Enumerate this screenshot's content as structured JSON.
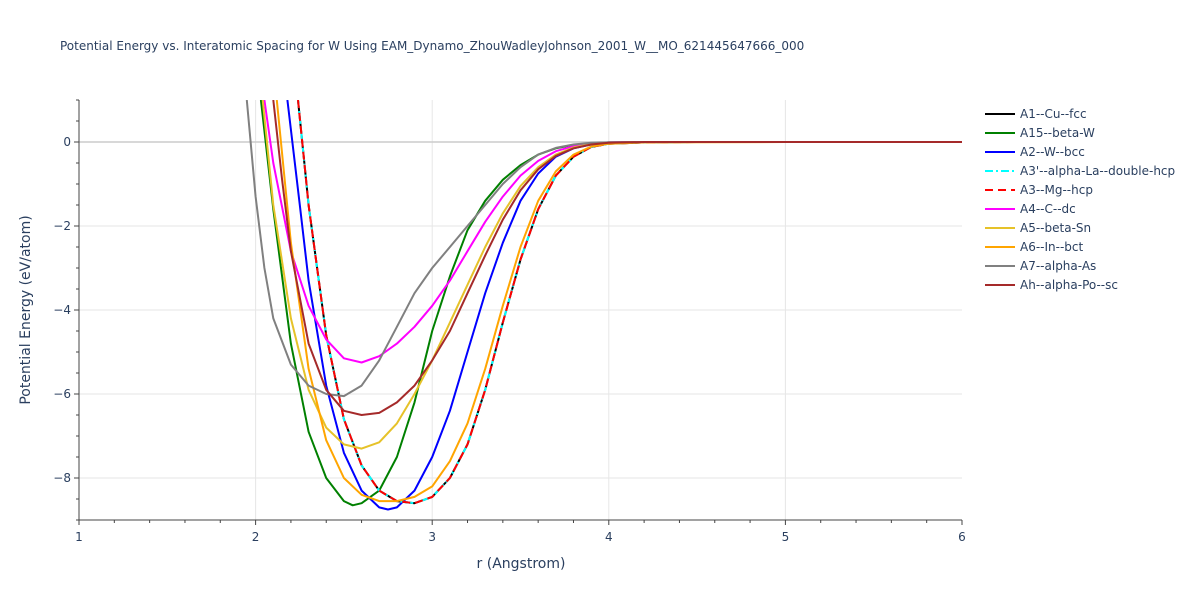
{
  "chart_data": {
    "type": "line",
    "title": "Potential Energy vs. Interatomic Spacing for W Using EAM_Dynamo_ZhouWadleyJohnson_2001_W__MO_621445647666_000",
    "xlabel": "r (Angstrom)",
    "ylabel": "Potential Energy (eV/atom)",
    "xlim": [
      1,
      6
    ],
    "ylim": [
      -9,
      1
    ],
    "xticks": [
      1,
      2,
      3,
      4,
      5,
      6
    ],
    "xtick_labels": [
      "1",
      "2",
      "3",
      "4",
      "5",
      "6"
    ],
    "yticks": [
      0,
      -2,
      -4,
      -6,
      -8
    ],
    "ytick_labels": [
      "0",
      "−2",
      "−4",
      "−6",
      "−8"
    ],
    "grid": true,
    "legend_position": "right",
    "series": [
      {
        "name": "A1--Cu--fcc",
        "color": "#000000",
        "dash": "solid",
        "x": [
          2.24,
          2.3,
          2.4,
          2.5,
          2.6,
          2.7,
          2.8,
          2.9,
          3.0,
          3.1,
          3.2,
          3.3,
          3.4,
          3.5,
          3.6,
          3.7,
          3.8,
          3.9,
          4.0,
          4.2,
          4.5,
          5.0,
          6.0
        ],
        "y": [
          1.0,
          -1.5,
          -4.6,
          -6.6,
          -7.7,
          -8.3,
          -8.55,
          -8.6,
          -8.45,
          -8.0,
          -7.2,
          -5.9,
          -4.3,
          -2.8,
          -1.6,
          -0.8,
          -0.35,
          -0.12,
          -0.04,
          -0.01,
          0.0,
          0.0,
          0.0
        ]
      },
      {
        "name": "A15--beta-W",
        "color": "#008000",
        "dash": "solid",
        "x": [
          2.03,
          2.1,
          2.2,
          2.3,
          2.4,
          2.5,
          2.55,
          2.6,
          2.7,
          2.8,
          2.9,
          3.0,
          3.1,
          3.2,
          3.3,
          3.4,
          3.5,
          3.6,
          3.7,
          3.8,
          3.9,
          4.0,
          4.2,
          5.0,
          6.0
        ],
        "y": [
          1.0,
          -1.6,
          -4.8,
          -6.9,
          -8.0,
          -8.55,
          -8.65,
          -8.6,
          -8.3,
          -7.5,
          -6.2,
          -4.5,
          -3.2,
          -2.1,
          -1.4,
          -0.9,
          -0.55,
          -0.3,
          -0.15,
          -0.07,
          -0.03,
          -0.01,
          0.0,
          0.0,
          0.0
        ]
      },
      {
        "name": "A2--W--bcc",
        "color": "#0000ff",
        "dash": "solid",
        "x": [
          2.18,
          2.25,
          2.3,
          2.4,
          2.5,
          2.6,
          2.7,
          2.75,
          2.8,
          2.9,
          3.0,
          3.1,
          3.2,
          3.3,
          3.4,
          3.5,
          3.6,
          3.7,
          3.8,
          3.9,
          4.0,
          4.2,
          5.0,
          6.0
        ],
        "y": [
          1.0,
          -1.5,
          -3.3,
          -5.8,
          -7.4,
          -8.3,
          -8.7,
          -8.75,
          -8.7,
          -8.3,
          -7.5,
          -6.4,
          -5.0,
          -3.6,
          -2.4,
          -1.4,
          -0.75,
          -0.35,
          -0.15,
          -0.06,
          -0.02,
          0.0,
          0.0,
          0.0
        ]
      },
      {
        "name": "A3'--alpha-La--double-hcp",
        "color": "#00ffff",
        "dash": "dashdot",
        "x": [
          2.24,
          2.3,
          2.4,
          2.5,
          2.6,
          2.7,
          2.8,
          2.9,
          3.0,
          3.1,
          3.2,
          3.3,
          3.4,
          3.5,
          3.6,
          3.7,
          3.8,
          3.9,
          4.0,
          4.2,
          4.5,
          5.0,
          6.0
        ],
        "y": [
          1.0,
          -1.5,
          -4.6,
          -6.6,
          -7.7,
          -8.3,
          -8.55,
          -8.6,
          -8.45,
          -8.0,
          -7.2,
          -5.9,
          -4.3,
          -2.8,
          -1.6,
          -0.8,
          -0.35,
          -0.12,
          -0.04,
          -0.01,
          0.0,
          0.0,
          0.0
        ]
      },
      {
        "name": "A3--Mg--hcp",
        "color": "#ff0000",
        "dash": "dash",
        "x": [
          2.24,
          2.3,
          2.4,
          2.5,
          2.6,
          2.7,
          2.8,
          2.9,
          3.0,
          3.1,
          3.2,
          3.3,
          3.4,
          3.5,
          3.6,
          3.7,
          3.8,
          3.9,
          4.0,
          4.2,
          4.5,
          5.0,
          6.0
        ],
        "y": [
          1.0,
          -1.5,
          -4.6,
          -6.6,
          -7.7,
          -8.3,
          -8.55,
          -8.6,
          -8.45,
          -8.0,
          -7.2,
          -5.9,
          -4.3,
          -2.8,
          -1.6,
          -0.8,
          -0.35,
          -0.12,
          -0.04,
          -0.01,
          0.0,
          0.0,
          0.0
        ]
      },
      {
        "name": "A4--C--dc",
        "color": "#ff00ff",
        "dash": "solid",
        "x": [
          2.05,
          2.1,
          2.2,
          2.3,
          2.4,
          2.5,
          2.6,
          2.7,
          2.8,
          2.9,
          3.0,
          3.1,
          3.2,
          3.3,
          3.4,
          3.5,
          3.6,
          3.7,
          3.8,
          3.9,
          4.0,
          4.2,
          5.0,
          6.0
        ],
        "y": [
          1.0,
          -0.5,
          -2.6,
          -3.9,
          -4.7,
          -5.15,
          -5.25,
          -5.1,
          -4.8,
          -4.4,
          -3.9,
          -3.3,
          -2.6,
          -1.9,
          -1.3,
          -0.8,
          -0.45,
          -0.22,
          -0.1,
          -0.04,
          -0.01,
          0.0,
          0.0,
          0.0
        ]
      },
      {
        "name": "A5--beta-Sn",
        "color": "#e6c229",
        "dash": "solid",
        "x": [
          2.04,
          2.1,
          2.2,
          2.3,
          2.4,
          2.5,
          2.6,
          2.7,
          2.8,
          2.9,
          3.0,
          3.1,
          3.2,
          3.3,
          3.4,
          3.5,
          3.6,
          3.7,
          3.8,
          3.9,
          4.0,
          4.2,
          5.0,
          6.0
        ],
        "y": [
          1.0,
          -1.5,
          -4.2,
          -5.9,
          -6.8,
          -7.2,
          -7.3,
          -7.15,
          -6.7,
          -6.0,
          -5.2,
          -4.3,
          -3.4,
          -2.5,
          -1.7,
          -1.05,
          -0.6,
          -0.3,
          -0.13,
          -0.05,
          -0.02,
          0.0,
          0.0,
          0.0
        ]
      },
      {
        "name": "A6--In--bct",
        "color": "#ffa500",
        "dash": "solid",
        "x": [
          2.12,
          2.2,
          2.3,
          2.4,
          2.5,
          2.6,
          2.7,
          2.8,
          2.9,
          3.0,
          3.1,
          3.2,
          3.3,
          3.4,
          3.5,
          3.6,
          3.7,
          3.8,
          3.9,
          4.0,
          4.2,
          5.0,
          6.0
        ],
        "y": [
          1.0,
          -2.4,
          -5.4,
          -7.1,
          -8.0,
          -8.4,
          -8.55,
          -8.55,
          -8.45,
          -8.2,
          -7.6,
          -6.7,
          -5.4,
          -3.9,
          -2.5,
          -1.4,
          -0.7,
          -0.3,
          -0.11,
          -0.04,
          -0.01,
          0.0,
          0.0
        ]
      },
      {
        "name": "A7--alpha-As",
        "color": "#808080",
        "dash": "solid",
        "x": [
          1.95,
          2.0,
          2.05,
          2.1,
          2.2,
          2.3,
          2.4,
          2.5,
          2.6,
          2.7,
          2.8,
          2.9,
          3.0,
          3.1,
          3.2,
          3.3,
          3.4,
          3.5,
          3.6,
          3.7,
          3.8,
          3.9,
          4.0,
          4.2,
          5.0,
          6.0
        ],
        "y": [
          1.0,
          -1.3,
          -3.0,
          -4.2,
          -5.3,
          -5.8,
          -6.0,
          -6.05,
          -5.8,
          -5.2,
          -4.4,
          -3.6,
          -3.0,
          -2.5,
          -2.0,
          -1.5,
          -1.0,
          -0.6,
          -0.3,
          -0.14,
          -0.06,
          -0.02,
          -0.01,
          0.0,
          0.0,
          0.0
        ]
      },
      {
        "name": "Ah--alpha-Po--sc",
        "color": "#a52a2a",
        "dash": "solid",
        "x": [
          2.1,
          2.15,
          2.2,
          2.3,
          2.4,
          2.5,
          2.6,
          2.7,
          2.8,
          2.9,
          3.0,
          3.1,
          3.2,
          3.3,
          3.4,
          3.5,
          3.6,
          3.7,
          3.8,
          3.9,
          4.0,
          4.2,
          5.0,
          6.0
        ],
        "y": [
          1.0,
          -0.9,
          -2.6,
          -4.8,
          -5.9,
          -6.4,
          -6.5,
          -6.45,
          -6.2,
          -5.8,
          -5.2,
          -4.5,
          -3.6,
          -2.7,
          -1.85,
          -1.15,
          -0.65,
          -0.33,
          -0.15,
          -0.06,
          -0.02,
          0.0,
          0.0,
          0.0
        ]
      }
    ]
  }
}
